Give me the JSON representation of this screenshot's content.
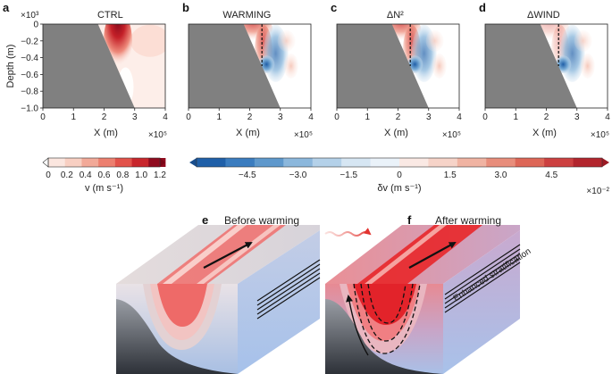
{
  "chart_data": [
    {
      "type": "heatmap",
      "panel": "a",
      "title": "CTRL",
      "quantity": "v",
      "xlabel": "X (m)",
      "ylabel": "Depth (m)",
      "xlim": [
        0,
        4
      ],
      "ylim": [
        -1.0,
        0
      ],
      "x_ticks": [
        "0",
        "1",
        "2",
        "3",
        "4"
      ],
      "y_ticks": [
        "0",
        "−0.2",
        "−0.4",
        "−0.6",
        "−0.8",
        "−1.0"
      ],
      "x_scale": "×10⁵",
      "y_scale": "×10³",
      "slope_x_top": 1.8,
      "slope_x_bottom": 3.0,
      "jet_core_x": 2.3,
      "jet_max_v": 1.2
    },
    {
      "type": "heatmap",
      "panel": "b",
      "title": "WARMING",
      "quantity": "δv",
      "xlabel": "X (m)",
      "xlim": [
        0,
        4
      ],
      "ylim": [
        -1.0,
        0
      ],
      "x_ticks": [
        "0",
        "1",
        "2",
        "3",
        "4"
      ],
      "x_scale": "×10⁵",
      "dashed_x": 2.4
    },
    {
      "type": "heatmap",
      "panel": "c",
      "title": "ΔN²",
      "quantity": "δv",
      "xlabel": "X (m)",
      "xlim": [
        0,
        4
      ],
      "ylim": [
        -1.0,
        0
      ],
      "x_ticks": [
        "0",
        "1",
        "2",
        "3",
        "4"
      ],
      "x_scale": "×10⁵",
      "dashed_x": 2.4
    },
    {
      "type": "heatmap",
      "panel": "d",
      "title": "ΔWIND",
      "quantity": "δv",
      "xlabel": "X (m)",
      "xlim": [
        0,
        4
      ],
      "ylim": [
        -1.0,
        0
      ],
      "x_ticks": [
        "0",
        "1",
        "2",
        "3",
        "4"
      ],
      "x_scale": "×10⁵",
      "dashed_x": 2.4
    }
  ],
  "colorbars": {
    "v": {
      "label": "v (m s⁻¹)",
      "ticks": [
        "0",
        "0.2",
        "0.4",
        "0.6",
        "0.8",
        "1.0",
        "1.2"
      ],
      "colors": [
        "#fbe6df",
        "#f8cfc2",
        "#f2a998",
        "#ec7f6f",
        "#e2524a",
        "#c8262c",
        "#8f0a1e"
      ]
    },
    "dv": {
      "label": "δv (m s⁻¹)",
      "ticks": [
        "−4.5",
        "−3.0",
        "−1.5",
        "0",
        "1.5",
        "3.0",
        "4.5"
      ],
      "scale": "×10⁻²",
      "neg_colors": [
        "#1f5fa8",
        "#3a7cbf",
        "#5e98cc",
        "#8bb7dc",
        "#b4d1e9",
        "#d6e6f3",
        "#eaf2f9"
      ],
      "pos_colors": [
        "#fae9e4",
        "#f6d3c8",
        "#f0b3a2",
        "#e88d7b",
        "#dd6657",
        "#cc4040",
        "#b2252d"
      ]
    }
  },
  "schematics": {
    "e": {
      "label": "e",
      "title": "Before warming"
    },
    "f": {
      "label": "f",
      "title": "After warming",
      "annotation": "Enhanced stratification"
    }
  },
  "colors": {
    "topography": "#808080",
    "jet": "#e8413c",
    "dashed": "#111111"
  }
}
